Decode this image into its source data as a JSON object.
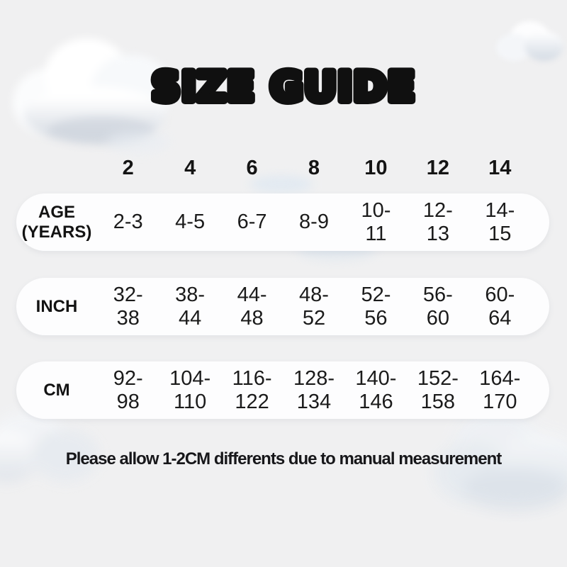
{
  "title": "SIZE GUIDE",
  "table": {
    "header_sizes": [
      "2",
      "4",
      "6",
      "8",
      "10",
      "12",
      "14"
    ],
    "rows": [
      {
        "label": "AGE (YEARS)",
        "values": [
          "2-3",
          "4-5",
          "6-7",
          "8-9",
          "10-11",
          "12-13",
          "14-15"
        ]
      },
      {
        "label": "INCH",
        "values": [
          "32-38",
          "38-44",
          "44-48",
          "48-52",
          "52-56",
          "56-60",
          "60-64"
        ]
      },
      {
        "label": "CM",
        "values": [
          "92-98",
          "104-110",
          "116-122",
          "128-134",
          "140-146",
          "152-158",
          "164-170"
        ]
      }
    ]
  },
  "footer_note": "Please allow 1-2CM differents due to manual measurement",
  "colors": {
    "background": "#f0f0f1",
    "row_pill": "#fdfdfe",
    "text": "#161616",
    "cloud_shade": "#d9dee5",
    "wisp_blue": "#dbe7f2"
  },
  "decorations": {
    "clouds": [
      "cloud-top-left",
      "cloud-top-right",
      "cloud-bottom-left",
      "cloud-bottom-right"
    ]
  }
}
